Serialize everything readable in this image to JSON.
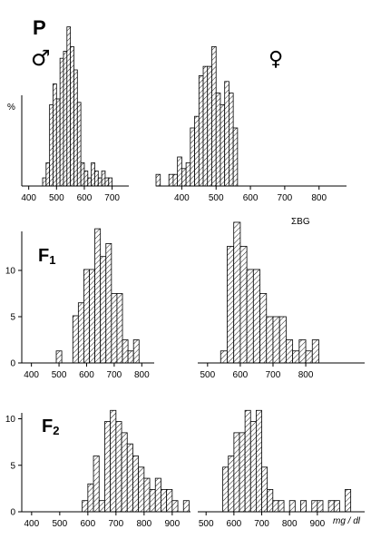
{
  "labels": {
    "p": "P",
    "male": "♂",
    "female": "♀",
    "f1": "F",
    "f1_sub": "1",
    "f2": "F",
    "f2_sub": "2",
    "sigma_bg": "ΣBG",
    "percent": "%",
    "unit": "mg / dl"
  },
  "chart_data": [
    {
      "type": "bar",
      "id": "P-male",
      "generation": "P",
      "sex": "male",
      "bin_width": 12.5,
      "ylim": [
        0,
        15
      ],
      "xlim": [
        375,
        760
      ],
      "xticks": [
        400,
        500,
        600,
        700
      ],
      "bins": [
        {
          "x": 450,
          "y": 0.7
        },
        {
          "x": 462.5,
          "y": 2.0
        },
        {
          "x": 475,
          "y": 7.0
        },
        {
          "x": 487.5,
          "y": 8.8
        },
        {
          "x": 500,
          "y": 7.5
        },
        {
          "x": 512.5,
          "y": 11.0
        },
        {
          "x": 525,
          "y": 11.6
        },
        {
          "x": 537.5,
          "y": 13.7
        },
        {
          "x": 550,
          "y": 12.0
        },
        {
          "x": 562.5,
          "y": 10.0
        },
        {
          "x": 575,
          "y": 7.2
        },
        {
          "x": 587.5,
          "y": 2.0
        },
        {
          "x": 600,
          "y": 1.3
        },
        {
          "x": 612.5,
          "y": 0.7
        },
        {
          "x": 625,
          "y": 2.0
        },
        {
          "x": 637.5,
          "y": 1.3
        },
        {
          "x": 650,
          "y": 0.7
        },
        {
          "x": 662.5,
          "y": 1.3
        },
        {
          "x": 675,
          "y": 0.7
        },
        {
          "x": 687.5,
          "y": 0.7
        }
      ]
    },
    {
      "type": "bar",
      "id": "P-female",
      "generation": "P",
      "sex": "female",
      "bin_width": 12.5,
      "ylim": [
        0,
        15
      ],
      "xlim": [
        325,
        880
      ],
      "xticks": [
        400,
        500,
        600,
        700,
        800
      ],
      "bins": [
        {
          "x": 325,
          "y": 1.0
        },
        {
          "x": 337.5,
          "y": 0
        },
        {
          "x": 350,
          "y": 0
        },
        {
          "x": 362.5,
          "y": 1.0
        },
        {
          "x": 375,
          "y": 1.0
        },
        {
          "x": 387.5,
          "y": 2.5
        },
        {
          "x": 400,
          "y": 1.5
        },
        {
          "x": 412.5,
          "y": 2.0
        },
        {
          "x": 425,
          "y": 5.0
        },
        {
          "x": 437.5,
          "y": 6.0
        },
        {
          "x": 450,
          "y": 9.5
        },
        {
          "x": 462.5,
          "y": 10.3
        },
        {
          "x": 475,
          "y": 10.3
        },
        {
          "x": 487.5,
          "y": 12.0
        },
        {
          "x": 500,
          "y": 8.0
        },
        {
          "x": 512.5,
          "y": 7.0
        },
        {
          "x": 525,
          "y": 9.0
        },
        {
          "x": 537.5,
          "y": 8.0
        },
        {
          "x": 550,
          "y": 5.0
        }
      ]
    },
    {
      "type": "bar",
      "id": "F1-male",
      "generation": "F1",
      "sex": "male",
      "bin_width": 20,
      "ylim": [
        0,
        15
      ],
      "yticks": [
        0,
        5,
        10
      ],
      "xlim": [
        365,
        845
      ],
      "xticks": [
        400,
        500,
        600,
        700,
        800
      ],
      "bins": [
        {
          "x": 490,
          "y": 1.3
        },
        {
          "x": 510,
          "y": 0
        },
        {
          "x": 530,
          "y": 0
        },
        {
          "x": 550,
          "y": 5.1
        },
        {
          "x": 570,
          "y": 6.5
        },
        {
          "x": 590,
          "y": 10.1
        },
        {
          "x": 610,
          "y": 10.1
        },
        {
          "x": 630,
          "y": 14.5
        },
        {
          "x": 650,
          "y": 11.5
        },
        {
          "x": 670,
          "y": 12.9
        },
        {
          "x": 690,
          "y": 7.5
        },
        {
          "x": 710,
          "y": 7.5
        },
        {
          "x": 730,
          "y": 2.5
        },
        {
          "x": 750,
          "y": 1.3
        },
        {
          "x": 770,
          "y": 2.5
        }
      ]
    },
    {
      "type": "bar",
      "id": "F1-female",
      "generation": "F1",
      "sex": "female",
      "bin_width": 20,
      "ylim": [
        0,
        15
      ],
      "xlim": [
        470,
        980
      ],
      "xticks": [
        500,
        600,
        700,
        800
      ],
      "bins": [
        {
          "x": 540,
          "y": 1.3
        },
        {
          "x": 560,
          "y": 12.6
        },
        {
          "x": 580,
          "y": 15.2
        },
        {
          "x": 600,
          "y": 12.6
        },
        {
          "x": 620,
          "y": 10.1
        },
        {
          "x": 640,
          "y": 10.1
        },
        {
          "x": 660,
          "y": 7.5
        },
        {
          "x": 680,
          "y": 5.0
        },
        {
          "x": 700,
          "y": 5.0
        },
        {
          "x": 720,
          "y": 5.0
        },
        {
          "x": 740,
          "y": 2.5
        },
        {
          "x": 760,
          "y": 1.3
        },
        {
          "x": 780,
          "y": 2.5
        },
        {
          "x": 800,
          "y": 1.3
        },
        {
          "x": 820,
          "y": 2.5
        }
      ]
    },
    {
      "type": "bar",
      "id": "F2-male",
      "generation": "F2",
      "sex": "male",
      "bin_width": 20,
      "ylim": [
        0,
        12
      ],
      "yticks": [
        0,
        5,
        10
      ],
      "xlim": [
        365,
        965
      ],
      "xticks": [
        400,
        500,
        600,
        700,
        800,
        900
      ],
      "bins": [
        {
          "x": 580,
          "y": 1.2
        },
        {
          "x": 600,
          "y": 3.0
        },
        {
          "x": 620,
          "y": 6.0
        },
        {
          "x": 640,
          "y": 1.2
        },
        {
          "x": 660,
          "y": 9.7
        },
        {
          "x": 680,
          "y": 10.9
        },
        {
          "x": 700,
          "y": 9.7
        },
        {
          "x": 720,
          "y": 8.5
        },
        {
          "x": 740,
          "y": 7.3
        },
        {
          "x": 760,
          "y": 6.0
        },
        {
          "x": 780,
          "y": 4.8
        },
        {
          "x": 800,
          "y": 3.6
        },
        {
          "x": 820,
          "y": 2.4
        },
        {
          "x": 840,
          "y": 3.6
        },
        {
          "x": 860,
          "y": 2.4
        },
        {
          "x": 880,
          "y": 2.4
        },
        {
          "x": 900,
          "y": 1.2
        },
        {
          "x": 920,
          "y": 0
        },
        {
          "x": 940,
          "y": 1.2
        }
      ]
    },
    {
      "type": "bar",
      "id": "F2-female",
      "generation": "F2",
      "sex": "female",
      "bin_width": 20,
      "ylim": [
        0,
        12
      ],
      "xlim": [
        470,
        1070
      ],
      "xticks": [
        500,
        600,
        700,
        800,
        900
      ],
      "bins": [
        {
          "x": 540,
          "y": 0
        },
        {
          "x": 560,
          "y": 4.8
        },
        {
          "x": 580,
          "y": 6.0
        },
        {
          "x": 600,
          "y": 8.5
        },
        {
          "x": 620,
          "y": 8.5
        },
        {
          "x": 640,
          "y": 10.9
        },
        {
          "x": 660,
          "y": 9.7
        },
        {
          "x": 680,
          "y": 10.9
        },
        {
          "x": 700,
          "y": 4.8
        },
        {
          "x": 720,
          "y": 2.4
        },
        {
          "x": 740,
          "y": 1.2
        },
        {
          "x": 760,
          "y": 1.2
        },
        {
          "x": 780,
          "y": 0
        },
        {
          "x": 800,
          "y": 1.2
        },
        {
          "x": 820,
          "y": 0
        },
        {
          "x": 840,
          "y": 1.2
        },
        {
          "x": 860,
          "y": 0
        },
        {
          "x": 880,
          "y": 1.2
        },
        {
          "x": 900,
          "y": 1.2
        },
        {
          "x": 920,
          "y": 0
        },
        {
          "x": 940,
          "y": 1.2
        },
        {
          "x": 960,
          "y": 1.2
        },
        {
          "x": 980,
          "y": 0
        },
        {
          "x": 1000,
          "y": 2.4
        }
      ]
    }
  ]
}
